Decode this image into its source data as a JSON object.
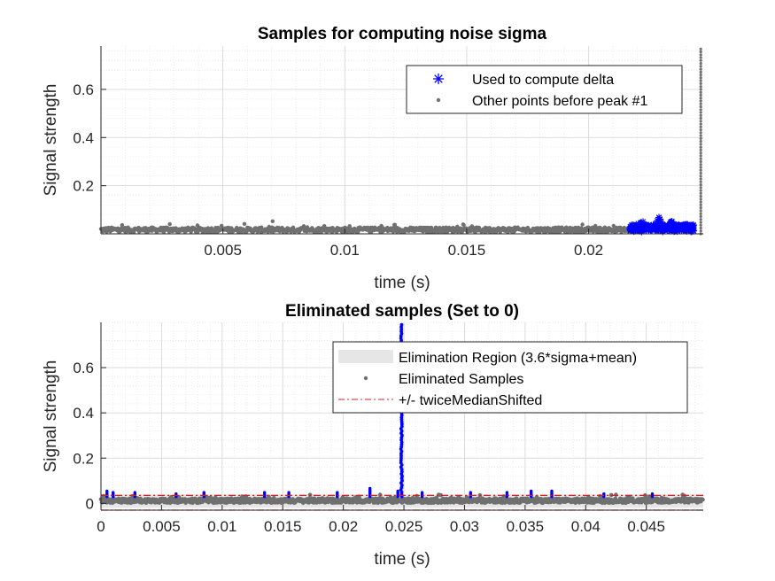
{
  "chart_data": [
    {
      "type": "scatter",
      "title": "Samples for computing noise sigma",
      "xlabel": "time (s)",
      "ylabel": "Signal strength",
      "xlim": [
        0,
        0.0247
      ],
      "ylim": [
        0,
        0.78
      ],
      "xticks": [
        0.005,
        0.01,
        0.015,
        0.02
      ],
      "xtick_labels": [
        "0.005",
        "0.01",
        "0.015",
        "0.02"
      ],
      "yticks": [
        0.2,
        0.4,
        0.6
      ],
      "ytick_labels": [
        "0.2",
        "0.4",
        "0.6"
      ],
      "grid": true,
      "minor_grid": true,
      "legend_position": "top-right",
      "series": [
        {
          "name": "Used to compute delta",
          "marker": "asterisk",
          "color": "#0000ff",
          "x_range": [
            0.0217,
            0.0243
          ],
          "y_baseline": 0.018,
          "y_noise_max": 0.038,
          "peaks": [
            [
              0.0222,
              0.06
            ],
            [
              0.0229,
              0.075
            ],
            [
              0.0234,
              0.055
            ],
            [
              0.024,
              0.045
            ]
          ]
        },
        {
          "name": "Other points before peak #1",
          "marker": "point",
          "color": "#707070",
          "x_range": [
            0,
            0.0217
          ],
          "y_baseline": 0.017,
          "y_noise_max": 0.045,
          "vertical_tail": {
            "x": 0.0246,
            "y_range": [
              0.0,
              0.78
            ]
          }
        }
      ]
    },
    {
      "type": "scatter",
      "title": "Eliminated samples (Set to 0)",
      "xlabel": "time (s)",
      "ylabel": "Signal strength",
      "xlim": [
        0,
        0.0497
      ],
      "ylim": [
        -0.03,
        0.8
      ],
      "xticks": [
        0,
        0.005,
        0.01,
        0.015,
        0.02,
        0.025,
        0.03,
        0.035,
        0.04,
        0.045
      ],
      "xtick_labels": [
        "0",
        "0.005",
        "0.01",
        "0.015",
        "0.02",
        "0.025",
        "0.03",
        "0.035",
        "0.04",
        "0.045"
      ],
      "yticks": [
        0,
        0.2,
        0.4,
        0.6
      ],
      "ytick_labels": [
        "0",
        "0.2",
        "0.4",
        "0.6"
      ],
      "grid": true,
      "minor_grid": true,
      "legend_position": "top-right",
      "series": [
        {
          "name": "Elimination Region (3.6*sigma+mean)",
          "type": "band",
          "color": "#e6e6e6",
          "y_range": [
            -0.02,
            0.04
          ]
        },
        {
          "name": "Eliminated Samples",
          "marker": "point",
          "color": "#707070",
          "x_range": [
            0,
            0.0497
          ],
          "y_range": [
            0.0,
            0.038
          ]
        },
        {
          "name": "+/- twiceMedianShifted",
          "type": "hline",
          "style": "dash-dot",
          "color": "#d62020",
          "values": [
            0.035,
            -0.03
          ]
        },
        {
          "name": "",
          "marker": "point",
          "color": "#0000ff",
          "peak": {
            "x": 0.0248,
            "y_max": 0.8
          },
          "spikes": [
            [
              0.0005,
              0.055
            ],
            [
              0.001,
              0.05
            ],
            [
              0.0028,
              0.05
            ],
            [
              0.0085,
              0.048
            ],
            [
              0.0135,
              0.05
            ],
            [
              0.0155,
              0.05
            ],
            [
              0.0195,
              0.052
            ],
            [
              0.0222,
              0.07
            ],
            [
              0.0245,
              0.055
            ],
            [
              0.0265,
              0.05
            ],
            [
              0.0305,
              0.048
            ],
            [
              0.0335,
              0.05
            ],
            [
              0.0355,
              0.055
            ],
            [
              0.0372,
              0.055
            ],
            [
              0.0062,
              0.045
            ],
            [
              0.0415,
              0.042
            ],
            [
              0.0455,
              0.042
            ]
          ]
        }
      ]
    }
  ]
}
